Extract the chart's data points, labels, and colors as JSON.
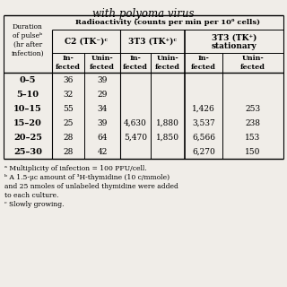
{
  "title": "with polyoma virus",
  "header1": "Radioactivity (counts per min per 10⁶ cells)",
  "footnotes": [
    "ᵃ Multiplicity of infection = 100 PFU/cell.",
    "ᵇ A 1.5-μc amount of ³H-thymidine (10 c/mmole)",
    "and 25 nmoles of unlabeled thymidine were added",
    "to each culture.",
    "ᶜ Slowly growing."
  ],
  "rows": [
    {
      "label": "0–5",
      "values": [
        "36",
        "39",
        "",
        "",
        "",
        ""
      ]
    },
    {
      "label": "5–10",
      "values": [
        "32",
        "29",
        "",
        "",
        "",
        ""
      ]
    },
    {
      "label": "10–15",
      "values": [
        "55",
        "34",
        "",
        "",
        "1,426",
        "253"
      ]
    },
    {
      "label": "15–20",
      "values": [
        "25",
        "39",
        "4,630",
        "1,880",
        "3,537",
        "238"
      ]
    },
    {
      "label": "20–25",
      "values": [
        "28",
        "64",
        "5,470",
        "1,850",
        "6,566",
        "153"
      ]
    },
    {
      "label": "25–30",
      "values": [
        "28",
        "42",
        "",
        "",
        "6,270",
        "150"
      ]
    }
  ],
  "bg_color": "#f0ede8"
}
